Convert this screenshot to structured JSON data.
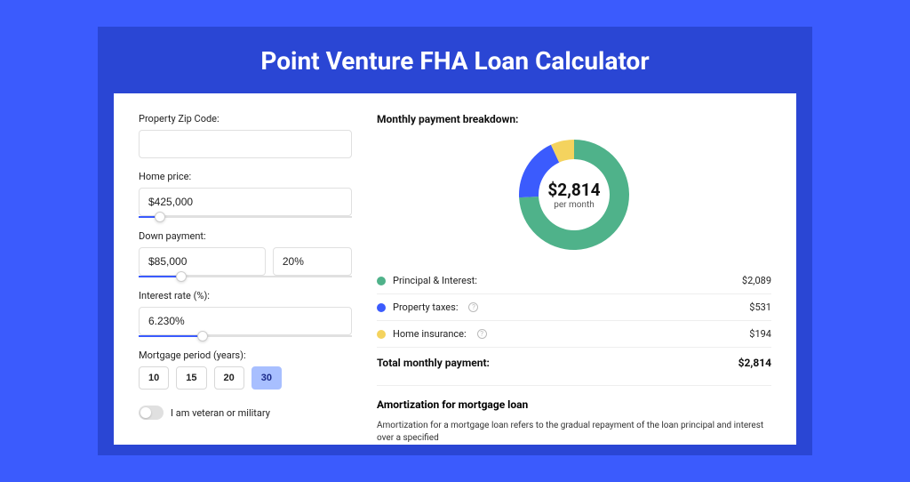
{
  "title": "Point Venture FHA Loan Calculator",
  "colors": {
    "page_bg": "#3b5bfd",
    "frame_bg": "#2a46d4",
    "card_bg": "#ffffff",
    "accent": "#3b5bfd"
  },
  "form": {
    "zip_label": "Property Zip Code:",
    "zip_value": "",
    "home_price_label": "Home price:",
    "home_price_value": "$425,000",
    "home_price_slider_pct": 10,
    "down_payment_label": "Down payment:",
    "down_payment_value": "$85,000",
    "down_payment_pct": "20%",
    "down_payment_slider_pct": 20,
    "interest_label": "Interest rate (%):",
    "interest_value": "6.230%",
    "interest_slider_pct": 30,
    "period_label": "Mortgage period (years):",
    "periods": [
      "10",
      "15",
      "20",
      "30"
    ],
    "period_selected": "30",
    "toggle_label": "I am veteran or military",
    "toggle_on": false
  },
  "breakdown": {
    "title": "Monthly payment breakdown:",
    "donut": {
      "type": "donut",
      "amount": "$2,814",
      "sub": "per month",
      "size": 128,
      "inner_radius": 40,
      "outer_radius": 62,
      "slices": [
        {
          "label": "Principal & Interest",
          "value": 2089,
          "pct": 74.2,
          "color": "#4fb28a"
        },
        {
          "label": "Property taxes",
          "value": 531,
          "pct": 18.9,
          "color": "#3b5bfd"
        },
        {
          "label": "Home insurance",
          "value": 194,
          "pct": 6.9,
          "color": "#f4d35e"
        }
      ]
    },
    "rows": [
      {
        "dot": "#4fb28a",
        "label": "Principal & Interest:",
        "value": "$2,089",
        "info": false
      },
      {
        "dot": "#3b5bfd",
        "label": "Property taxes:",
        "value": "$531",
        "info": true
      },
      {
        "dot": "#f4d35e",
        "label": "Home insurance:",
        "value": "$194",
        "info": true
      }
    ],
    "total_label": "Total monthly payment:",
    "total_value": "$2,814"
  },
  "amortization": {
    "title": "Amortization for mortgage loan",
    "text": "Amortization for a mortgage loan refers to the gradual repayment of the loan principal and interest over a specified"
  }
}
